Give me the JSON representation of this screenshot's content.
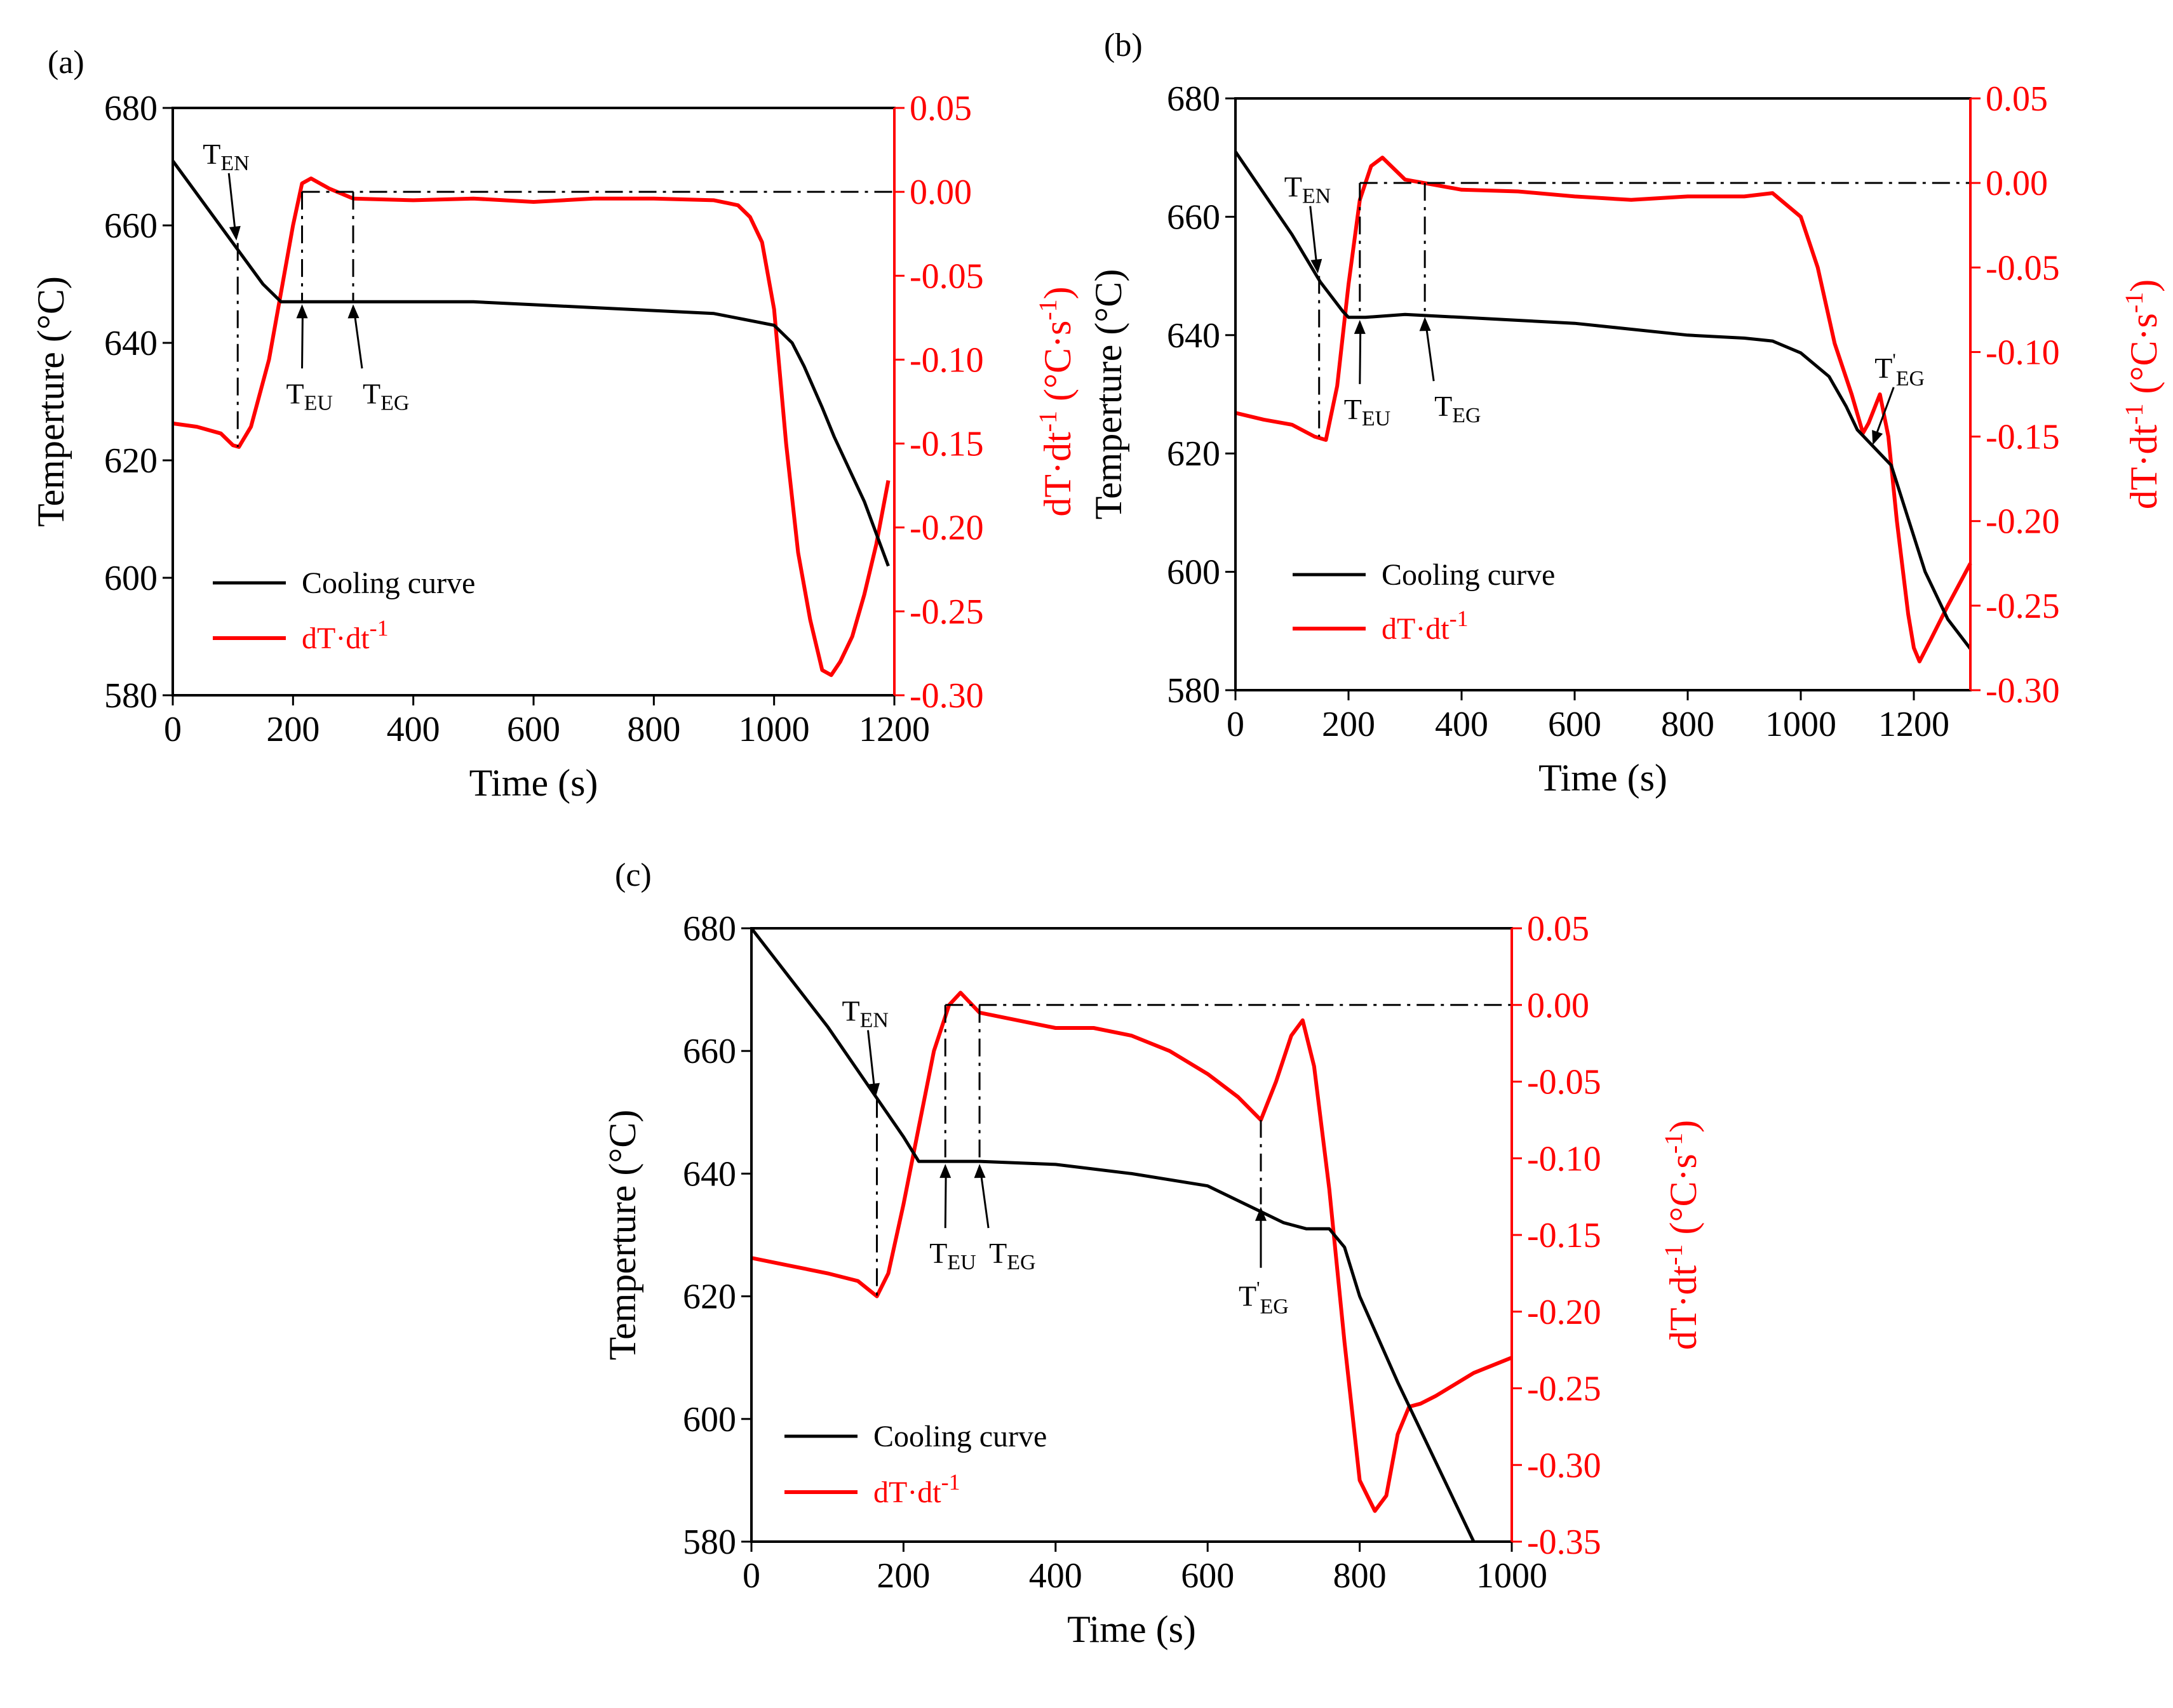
{
  "figure": {
    "description_labels": [
      "(a)",
      "(b)",
      "(c)"
    ]
  },
  "chart_data": [
    {
      "type": "line",
      "panel_label": "(a)",
      "xlabel": "Time (s)",
      "ylabel": "Temperture (°C)",
      "y2label": {
        "main": "dT·dt",
        "exp1": "-1",
        "unit_open": " (°C·s",
        "exp2": "-1",
        "unit_close": ")"
      },
      "xlim": [
        0,
        1200
      ],
      "xticks": [
        0,
        200,
        400,
        600,
        800,
        1000,
        1200
      ],
      "ylim": [
        580,
        680
      ],
      "yticks": [
        580,
        600,
        620,
        640,
        660,
        680
      ],
      "y2lim": [
        -0.3,
        0.05
      ],
      "y2ticks": [
        0.05,
        0.0,
        -0.05,
        -0.1,
        -0.15,
        -0.2,
        -0.25,
        -0.3
      ],
      "y2ticklabels": [
        "0.05",
        "0.00",
        "-0.05",
        "-0.10",
        "-0.15",
        "-0.20",
        "-0.25",
        "-0.30"
      ],
      "legend": {
        "cooling": "Cooling curve",
        "deriv_main": "dT·dt",
        "deriv_exp": "-1"
      },
      "colors": {
        "cooling": "#000000",
        "derivative": "#ff0000"
      },
      "series": [
        {
          "name": "Cooling curve",
          "axis": "left",
          "x": [
            0,
            50,
            100,
            150,
            180,
            200,
            250,
            300,
            400,
            500,
            600,
            700,
            800,
            900,
            950,
            1000,
            1030,
            1050,
            1080,
            1100,
            1150,
            1190
          ],
          "y": [
            671,
            664,
            657,
            650,
            647,
            647,
            647,
            647,
            647,
            647,
            646.5,
            646,
            645.5,
            645,
            644,
            643,
            640,
            636,
            629,
            624,
            613,
            602
          ]
        },
        {
          "name": "dT·dt-1",
          "axis": "right",
          "x": [
            0,
            40,
            80,
            100,
            110,
            130,
            160,
            180,
            200,
            215,
            230,
            260,
            300,
            400,
            500,
            600,
            700,
            800,
            900,
            940,
            960,
            980,
            1000,
            1020,
            1040,
            1060,
            1080,
            1095,
            1110,
            1130,
            1150,
            1170,
            1190
          ],
          "y": [
            -0.138,
            -0.14,
            -0.144,
            -0.151,
            -0.152,
            -0.14,
            -0.1,
            -0.06,
            -0.02,
            0.005,
            0.008,
            0.002,
            -0.004,
            -0.005,
            -0.004,
            -0.006,
            -0.004,
            -0.004,
            -0.005,
            -0.008,
            -0.015,
            -0.03,
            -0.07,
            -0.15,
            -0.215,
            -0.255,
            -0.285,
            -0.288,
            -0.28,
            -0.265,
            -0.24,
            -0.21,
            -0.172
          ]
        }
      ],
      "reference_line": {
        "y2": 0.0,
        "x_from": 215,
        "x_to": 1200
      },
      "annotations": [
        {
          "label": "T",
          "sub": "EN",
          "x": 108,
          "y": 657
        },
        {
          "label": "T",
          "sub": "EU",
          "x": 215,
          "y": 647
        },
        {
          "label": "T",
          "sub": "EG",
          "x": 300,
          "y": 647
        }
      ]
    },
    {
      "type": "line",
      "panel_label": "(b)",
      "xlabel": "Time (s)",
      "ylabel": "Temperture (°C)",
      "y2label": {
        "main": "dT·dt",
        "exp1": "-1",
        "unit_open": " (°C·s",
        "exp2": "-1",
        "unit_close": ")"
      },
      "xlim": [
        0,
        1300
      ],
      "xticks": [
        0,
        200,
        400,
        600,
        800,
        1000,
        1200
      ],
      "ylim": [
        580,
        680
      ],
      "yticks": [
        580,
        600,
        620,
        640,
        660,
        680
      ],
      "y2lim": [
        -0.3,
        0.05
      ],
      "y2ticks": [
        0.05,
        0.0,
        -0.05,
        -0.1,
        -0.15,
        -0.2,
        -0.25,
        -0.3
      ],
      "y2ticklabels": [
        "0.05",
        "0.00",
        "-0.05",
        "-0.10",
        "-0.15",
        "-0.20",
        "-0.25",
        "-0.30"
      ],
      "legend": {
        "cooling": "Cooling curve",
        "deriv_main": "dT·dt",
        "deriv_exp": "-1"
      },
      "colors": {
        "cooling": "#000000",
        "derivative": "#ff0000"
      },
      "series": [
        {
          "name": "Cooling curve",
          "axis": "left",
          "x": [
            0,
            50,
            100,
            150,
            190,
            200,
            230,
            300,
            400,
            500,
            600,
            700,
            800,
            900,
            950,
            1000,
            1050,
            1080,
            1100,
            1130,
            1160,
            1190,
            1220,
            1260,
            1300
          ],
          "y": [
            671,
            664,
            657,
            649,
            644,
            643,
            643,
            643.5,
            643,
            642.5,
            642,
            641,
            640,
            639.5,
            639,
            637,
            633,
            628,
            624,
            621,
            618,
            609,
            600,
            592,
            587
          ]
        },
        {
          "name": "dT·dt-1",
          "axis": "right",
          "x": [
            0,
            50,
            100,
            140,
            160,
            180,
            200,
            220,
            240,
            260,
            300,
            400,
            500,
            600,
            700,
            800,
            900,
            950,
            1000,
            1030,
            1060,
            1090,
            1110,
            1120,
            1140,
            1155,
            1170,
            1190,
            1200,
            1210,
            1230,
            1260,
            1300
          ],
          "y": [
            -0.136,
            -0.14,
            -0.143,
            -0.15,
            -0.152,
            -0.12,
            -0.06,
            -0.01,
            0.01,
            0.015,
            0.002,
            -0.004,
            -0.005,
            -0.008,
            -0.01,
            -0.008,
            -0.008,
            -0.006,
            -0.02,
            -0.05,
            -0.095,
            -0.125,
            -0.148,
            -0.142,
            -0.125,
            -0.15,
            -0.2,
            -0.255,
            -0.275,
            -0.283,
            -0.27,
            -0.25,
            -0.225
          ]
        }
      ],
      "reference_line": {
        "y2": 0.0,
        "x_from": 220,
        "x_to": 1300
      },
      "annotations": [
        {
          "label": "T",
          "sub": "EN",
          "x": 148,
          "y": 650
        },
        {
          "label": "T",
          "sub": "EU",
          "x": 220,
          "y": 643
        },
        {
          "label": "T",
          "sub": "EG",
          "x": 335,
          "y": 643.5
        },
        {
          "label": "T",
          "prime": "'",
          "sub": "EG",
          "x": 1125,
          "y": 621
        }
      ]
    },
    {
      "type": "line",
      "panel_label": "(c)",
      "xlabel": "Time (s)",
      "ylabel": "Temperture (°C)",
      "y2label": {
        "main": "dT·dt",
        "exp1": "-1",
        "unit_open": " (°C·s",
        "exp2": "-1",
        "unit_close": ")"
      },
      "xlim": [
        0,
        1000
      ],
      "xticks": [
        0,
        200,
        400,
        600,
        800,
        1000
      ],
      "ylim": [
        580,
        680
      ],
      "yticks": [
        580,
        600,
        620,
        640,
        660,
        680
      ],
      "y2lim": [
        -0.35,
        0.05
      ],
      "y2ticks": [
        0.05,
        0.0,
        -0.05,
        -0.1,
        -0.15,
        -0.2,
        -0.25,
        -0.3,
        -0.35
      ],
      "y2ticklabels": [
        "0.05",
        "0.00",
        "-0.05",
        "-0.10",
        "-0.15",
        "-0.20",
        "-0.25",
        "-0.30",
        "-0.35"
      ],
      "legend": {
        "cooling": "Cooling curve",
        "deriv_main": "dT·dt",
        "deriv_exp": "-1"
      },
      "colors": {
        "cooling": "#000000",
        "derivative": "#ff0000"
      },
      "series": [
        {
          "name": "Cooling curve",
          "axis": "left",
          "x": [
            0,
            50,
            100,
            150,
            200,
            220,
            250,
            300,
            400,
            500,
            600,
            650,
            700,
            730,
            760,
            780,
            800,
            850,
            900,
            950
          ],
          "y": [
            680,
            672,
            664,
            655,
            646,
            642,
            642,
            642,
            641.5,
            640,
            638,
            635,
            632,
            631,
            631,
            628,
            620,
            606,
            593,
            580
          ]
        },
        {
          "name": "dT·dt-1",
          "axis": "right",
          "x": [
            0,
            50,
            100,
            140,
            165,
            180,
            200,
            220,
            240,
            260,
            275,
            300,
            350,
            400,
            450,
            500,
            550,
            600,
            640,
            670,
            690,
            710,
            725,
            740,
            760,
            780,
            800,
            820,
            835,
            850,
            865,
            880,
            900,
            950,
            1000
          ],
          "y": [
            -0.165,
            -0.17,
            -0.175,
            -0.18,
            -0.19,
            -0.175,
            -0.13,
            -0.08,
            -0.03,
            0.0,
            0.008,
            -0.005,
            -0.01,
            -0.015,
            -0.015,
            -0.02,
            -0.03,
            -0.045,
            -0.06,
            -0.075,
            -0.05,
            -0.02,
            -0.01,
            -0.04,
            -0.12,
            -0.22,
            -0.31,
            -0.33,
            -0.32,
            -0.28,
            -0.262,
            -0.26,
            -0.255,
            -0.24,
            -0.23
          ]
        }
      ],
      "reference_line": {
        "y2": 0.0,
        "x_from": 255,
        "x_to": 1000
      },
      "annotations": [
        {
          "label": "T",
          "sub": "EN",
          "x": 165,
          "y": 652
        },
        {
          "label": "T",
          "sub": "EU",
          "x": 255,
          "y": 642
        },
        {
          "label": "T",
          "sub": "EG",
          "x": 300,
          "y": 642
        },
        {
          "label": "T",
          "prime": "'",
          "sub": "EG",
          "x": 670,
          "y": 635
        }
      ]
    }
  ]
}
